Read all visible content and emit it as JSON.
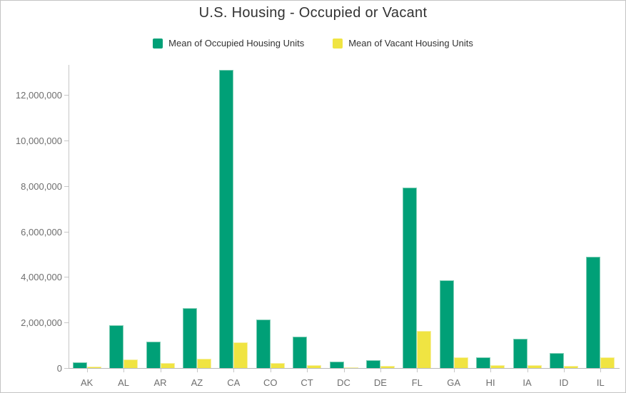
{
  "title": "U.S. Housing - Occupied or Vacant",
  "legend": [
    {
      "label": "Mean of Occupied Housing Units",
      "color": "#00A077"
    },
    {
      "label": "Mean of Vacant Housing Units",
      "color": "#F0E442"
    }
  ],
  "chart_data": {
    "type": "bar",
    "title": "U.S. Housing - Occupied or Vacant",
    "categories": [
      "AK",
      "AL",
      "AR",
      "AZ",
      "CA",
      "CO",
      "CT",
      "DC",
      "DE",
      "FL",
      "GA",
      "HI",
      "IA",
      "ID",
      "IL"
    ],
    "series": [
      {
        "name": "Mean of Occupied Housing Units",
        "color": "#00A077",
        "values": [
          250000,
          1870000,
          1150000,
          2620000,
          13100000,
          2120000,
          1390000,
          290000,
          355000,
          7930000,
          3840000,
          460000,
          1270000,
          655000,
          4880000
        ]
      },
      {
        "name": "Mean of Vacant Housing Units",
        "color": "#F0E442",
        "values": [
          60000,
          375000,
          210000,
          400000,
          1120000,
          220000,
          135000,
          40000,
          80000,
          1630000,
          470000,
          110000,
          135000,
          95000,
          480000
        ]
      }
    ],
    "xlabel": "",
    "ylabel": "",
    "ylim": [
      0,
      13300000
    ],
    "grid": false,
    "legend_position": "top",
    "y_ticks": [
      {
        "value": 0,
        "label": "0"
      },
      {
        "value": 2000000,
        "label": "2,000,000"
      },
      {
        "value": 4000000,
        "label": "4,000,000"
      },
      {
        "value": 6000000,
        "label": "6,000,000"
      },
      {
        "value": 8000000,
        "label": "8,000,000"
      },
      {
        "value": 10000000,
        "label": "10,000,000"
      },
      {
        "value": 12000000,
        "label": "12,000,000"
      }
    ]
  }
}
